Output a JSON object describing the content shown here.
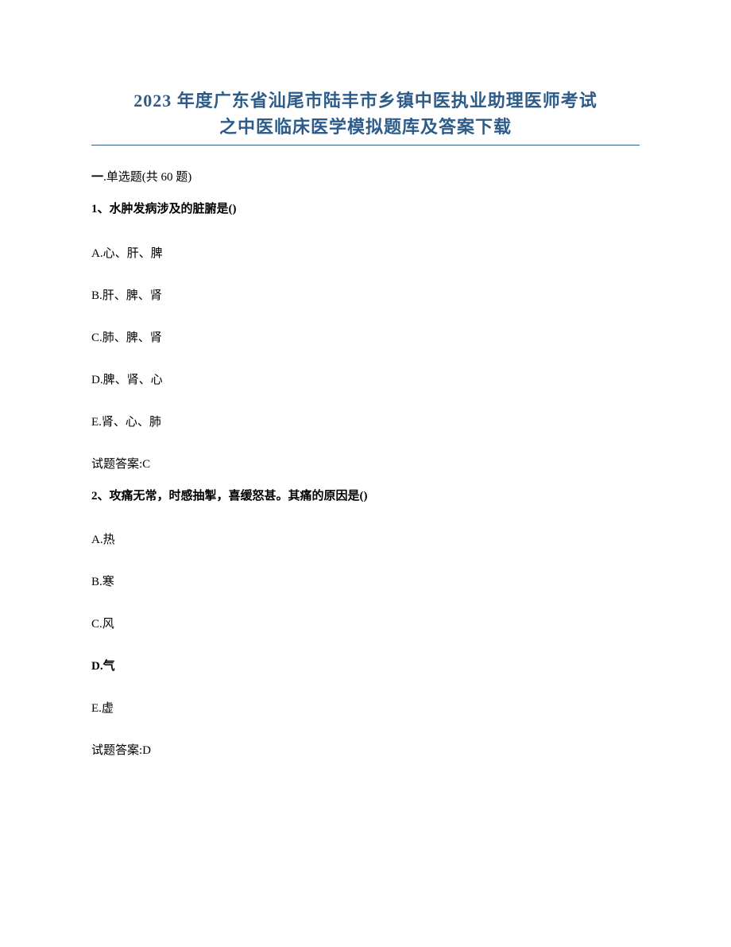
{
  "title": {
    "line1": "2023 年度广东省汕尾市陆丰市乡镇中医执业助理医师考试",
    "line2": "之中医临床医学模拟题库及答案下载",
    "color": "#2e5c8a",
    "fontsize": 22,
    "underline_color": "#2e5c8a"
  },
  "section": {
    "prefix": "一",
    "label": ".单选题(共 60 题)"
  },
  "questions": [
    {
      "number": "1、",
      "stem": "水肿发病涉及的脏腑是()",
      "options": [
        {
          "key": "A.",
          "text": "心、肝、脾"
        },
        {
          "key": "B.",
          "text": "肝、脾、肾"
        },
        {
          "key": "C.",
          "text": "肺、脾、肾"
        },
        {
          "key": "D.",
          "text": "脾、肾、心"
        },
        {
          "key": "E.",
          "text": "肾、心、肺"
        }
      ],
      "answer_label": "试题答案:",
      "answer_value": "C"
    },
    {
      "number": "2、",
      "stem": "攻痛无常，时感抽掣，喜缓怒甚。其痛的原因是()",
      "options": [
        {
          "key": "A.",
          "text": "热"
        },
        {
          "key": "B.",
          "text": "寒"
        },
        {
          "key": "C.",
          "text": "风"
        },
        {
          "key": "D.",
          "text": "气"
        },
        {
          "key": "E.",
          "text": "虚"
        }
      ],
      "answer_label": "试题答案:",
      "answer_value": "D"
    }
  ],
  "colors": {
    "text": "#000000",
    "background": "#ffffff"
  }
}
